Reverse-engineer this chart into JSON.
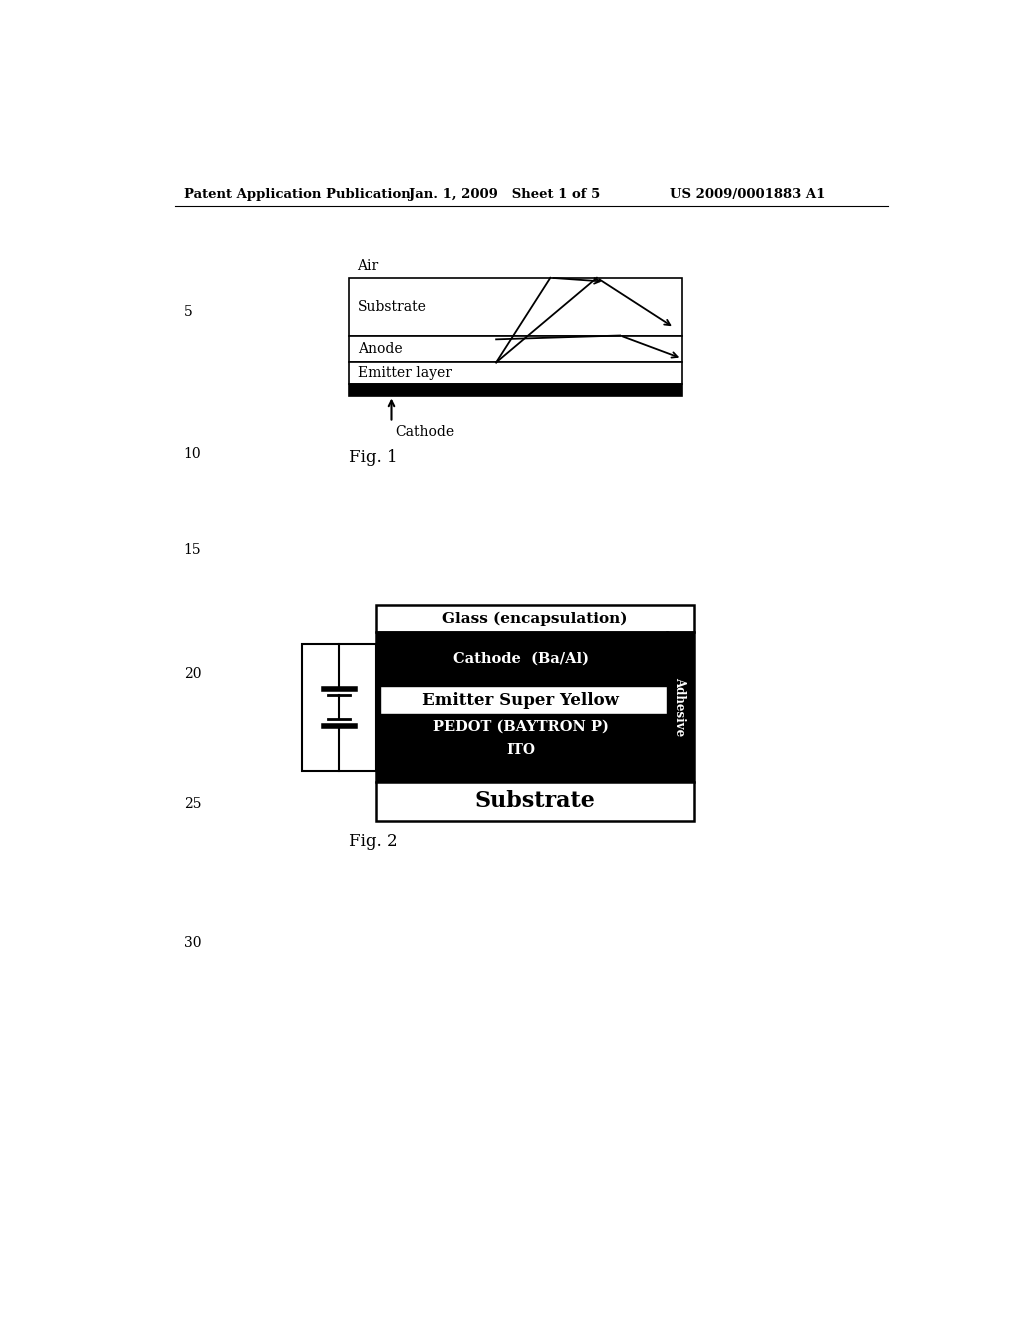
{
  "bg_color": "#ffffff",
  "header_left": "Patent Application Publication",
  "header_mid": "Jan. 1, 2009   Sheet 1 of 5",
  "header_right": "US 2009/0001883 A1",
  "fig1_label": "Fig. 1",
  "fig2_label": "Fig. 2",
  "fig1": {
    "air_label": "Air",
    "cathode_label": "Cathode"
  },
  "fig2": {
    "glass_label": "Glass (encapsulation)",
    "cathode_label": "Cathode  (Ba/Al)",
    "emitter_label": "Emitter Super Yellow",
    "pedot_label": "PEDOT (BAYTRON P)",
    "ito_label": "ITO",
    "substrate_label": "Substrate",
    "adhesive_label": "Adhesive"
  }
}
